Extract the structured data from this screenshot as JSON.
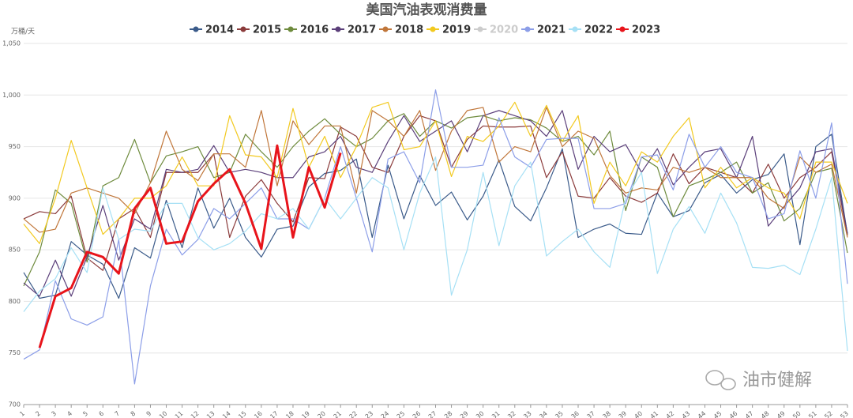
{
  "chart_data": {
    "type": "line",
    "title": "美国汽油表观消费量",
    "y_unit": "万桶/天",
    "watermark": "油市健解",
    "categories": [
      "1",
      "2",
      "3",
      "4",
      "5",
      "6",
      "7",
      "8",
      "9",
      "10",
      "11",
      "12",
      "13",
      "14",
      "15",
      "16",
      "17",
      "18",
      "19",
      "20",
      "21",
      "22",
      "23",
      "24",
      "25",
      "26",
      "27",
      "28",
      "29",
      "30",
      "31",
      "32",
      "33",
      "34",
      "35",
      "36",
      "37",
      "38",
      "39",
      "40",
      "41",
      "42",
      "43",
      "44",
      "45",
      "46",
      "47",
      "48",
      "49",
      "50",
      "51",
      "52",
      "53"
    ],
    "ylim": [
      700,
      1050
    ],
    "yticks": [
      700,
      750,
      800,
      850,
      900,
      950,
      {
        "value": 1000,
        "label": "1,000"
      },
      {
        "value": 1050,
        "label": "1,050"
      }
    ],
    "grid": true,
    "series": [
      {
        "name": "2014",
        "color": "#3b5b8a",
        "visible": true,
        "values": [
          828,
          803,
          806,
          858,
          845,
          836,
          803,
          852,
          842,
          898,
          852,
          910,
          871,
          900,
          862,
          843,
          870,
          873,
          911,
          924,
          927,
          938,
          862,
          932,
          880,
          922,
          893,
          906,
          879,
          902,
          937,
          892,
          878,
          910,
          948,
          862,
          870,
          875,
          866,
          865,
          905,
          882,
          888,
          915,
          923,
          905,
          918,
          923,
          943,
          855,
          950,
          962,
          865
        ]
      },
      {
        "name": "2015",
        "color": "#8b3b3b",
        "visible": true,
        "values": [
          880,
          887,
          885,
          902,
          842,
          830,
          880,
          890,
          862,
          925,
          925,
          925,
          943,
          862,
          902,
          918,
          895,
          877,
          920,
          919,
          969,
          960,
          930,
          925,
          960,
          980,
          975,
          930,
          957,
          970,
          969,
          969,
          970,
          920,
          945,
          902,
          900,
          920,
          902,
          896,
          905,
          943,
          914,
          930,
          925,
          920,
          905,
          933,
          900,
          920,
          930,
          945,
          864
        ]
      },
      {
        "name": "2016",
        "color": "#6e8b3d",
        "visible": true,
        "values": [
          815,
          848,
          908,
          895,
          838,
          912,
          920,
          957,
          915,
          941,
          945,
          950,
          920,
          925,
          962,
          945,
          930,
          950,
          965,
          977,
          962,
          950,
          958,
          975,
          982,
          960,
          975,
          968,
          978,
          980,
          975,
          978,
          976,
          968,
          955,
          960,
          942,
          965,
          888,
          940,
          930,
          882,
          912,
          918,
          925,
          935,
          905,
          915,
          878,
          890,
          925,
          929,
          847
        ]
      },
      {
        "name": "2017",
        "color": "#5b3f7a",
        "visible": true,
        "values": [
          818,
          805,
          840,
          805,
          843,
          893,
          840,
          880,
          870,
          928,
          925,
          928,
          951,
          925,
          928,
          925,
          920,
          920,
          940,
          945,
          960,
          930,
          925,
          955,
          980,
          955,
          965,
          975,
          945,
          980,
          985,
          980,
          975,
          960,
          985,
          928,
          960,
          945,
          952,
          925,
          948,
          913,
          930,
          945,
          948,
          920,
          960,
          873,
          892,
          910,
          945,
          948,
          866
        ]
      },
      {
        "name": "2018",
        "color": "#c0763a",
        "visible": true,
        "values": [
          880,
          867,
          870,
          905,
          910,
          905,
          900,
          885,
          915,
          965,
          928,
          917,
          943,
          943,
          930,
          985,
          912,
          975,
          952,
          970,
          970,
          905,
          985,
          975,
          960,
          985,
          927,
          965,
          985,
          988,
          935,
          950,
          945,
          988,
          950,
          965,
          958,
          922,
          905,
          910,
          908,
          930,
          925,
          930,
          920,
          920,
          920,
          900,
          890,
          940,
          925,
          933,
          862
        ]
      },
      {
        "name": "2019",
        "color": "#f2c91f",
        "visible": true,
        "values": [
          875,
          856,
          900,
          956,
          910,
          865,
          880,
          900,
          900,
          912,
          940,
          912,
          912,
          980,
          942,
          940,
          920,
          987,
          930,
          960,
          920,
          950,
          988,
          993,
          947,
          950,
          975,
          921,
          960,
          955,
          970,
          993,
          960,
          990,
          955,
          980,
          895,
          935,
          912,
          945,
          935,
          960,
          978,
          910,
          930,
          910,
          920,
          910,
          905,
          880,
          935,
          935,
          895
        ]
      },
      {
        "name": "2020",
        "color": "#c8c8c8",
        "visible": false,
        "values": [
          null,
          null,
          null,
          null,
          null,
          null,
          null,
          null,
          null,
          null,
          null,
          null,
          null,
          null,
          null,
          null,
          null,
          null,
          null,
          null,
          null,
          null,
          null,
          null,
          null,
          null,
          null,
          null,
          null,
          null,
          null,
          null,
          null,
          null,
          null,
          null,
          null,
          null,
          null,
          null,
          null,
          null,
          null,
          null,
          null,
          null,
          null,
          null,
          null,
          null,
          null,
          null,
          null
        ]
      },
      {
        "name": "2021",
        "color": "#8c9ee8",
        "visible": true,
        "values": [
          744,
          753,
          820,
          783,
          777,
          785,
          860,
          720,
          815,
          870,
          845,
          860,
          890,
          880,
          895,
          910,
          880,
          880,
          870,
          900,
          950,
          900,
          848,
          938,
          945,
          915,
          1005,
          930,
          930,
          932,
          978,
          940,
          930,
          957,
          958,
          958,
          890,
          890,
          895,
          940,
          942,
          908,
          962,
          930,
          950,
          925,
          920,
          880,
          885,
          946,
          900,
          973,
          817
        ]
      },
      {
        "name": "2022",
        "color": "#a6e0f5",
        "visible": true,
        "values": [
          790,
          810,
          822,
          852,
          828,
          910,
          860,
          870,
          868,
          895,
          895,
          862,
          850,
          856,
          868,
          885,
          880,
          890,
          870,
          900,
          880,
          900,
          920,
          910,
          850,
          905,
          940,
          806,
          850,
          925,
          854,
          912,
          935,
          844,
          858,
          870,
          848,
          833,
          900,
          925,
          827,
          870,
          892,
          866,
          905,
          876,
          833,
          832,
          835,
          826,
          870,
          920,
          752
        ]
      },
      {
        "name": "2023",
        "color": "#e8141b",
        "visible": true,
        "values": [
          null,
          755,
          805,
          813,
          848,
          843,
          827,
          890,
          910,
          856,
          858,
          897,
          914,
          928,
          895,
          851,
          951,
          862,
          930,
          891,
          944,
          null,
          null,
          null,
          null,
          null,
          null,
          null,
          null,
          null,
          null,
          null,
          null,
          null,
          null,
          null,
          null,
          null,
          null,
          null,
          null,
          null,
          null,
          null,
          null,
          null,
          null,
          null,
          null,
          null,
          null,
          null,
          null
        ]
      }
    ]
  }
}
